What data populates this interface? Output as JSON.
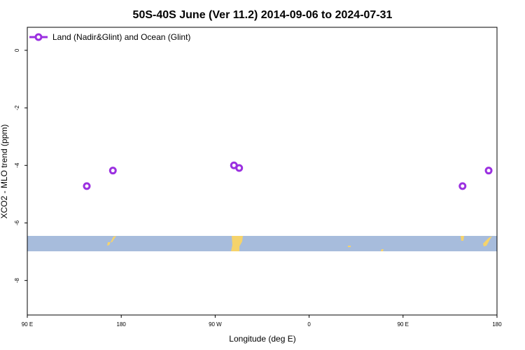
{
  "chart_data": {
    "type": "scatter",
    "title": "50S-40S June (Ver 11.2)   2014-09-06 to 2024-07-31",
    "xlabel": "Longitude (deg E)",
    "ylabel": "XCO2 - MLO trend (ppm)",
    "x_ticks": [
      {
        "value": 90,
        "label": "90 E"
      },
      {
        "value": 180,
        "label": "180"
      },
      {
        "value": 270,
        "label": "90 W"
      },
      {
        "value": 360,
        "label": "0"
      },
      {
        "value": 450,
        "label": "90 E"
      },
      {
        "value": 540,
        "label": "180"
      }
    ],
    "y_ticks": [
      {
        "value": 0,
        "label": "0"
      },
      {
        "value": -2,
        "label": "-2"
      },
      {
        "value": -4,
        "label": "-4"
      },
      {
        "value": -6,
        "label": "-6"
      },
      {
        "value": -8,
        "label": "-8"
      }
    ],
    "xlim": [
      90,
      540
    ],
    "ylim": [
      -9.2,
      0.8
    ],
    "series": [
      {
        "name": "Land (Nadir&Glint) and Ocean (Glint)",
        "color": "#9b30e0",
        "marker": "open-circle",
        "points": [
          {
            "x": 147,
            "y": -4.72
          },
          {
            "x": 172,
            "y": -4.18
          },
          {
            "x": 288,
            "y": -4.0
          },
          {
            "x": 293,
            "y": -4.09
          },
          {
            "x": 507,
            "y": -4.72
          },
          {
            "x": 532,
            "y": -4.18
          }
        ]
      }
    ],
    "legend": {
      "position": "top-left"
    },
    "map_strip": {
      "ocean_color": "#a7bcdc",
      "land_color": "#f5d36b",
      "latitude_range": [
        "50S",
        "40S"
      ]
    }
  }
}
